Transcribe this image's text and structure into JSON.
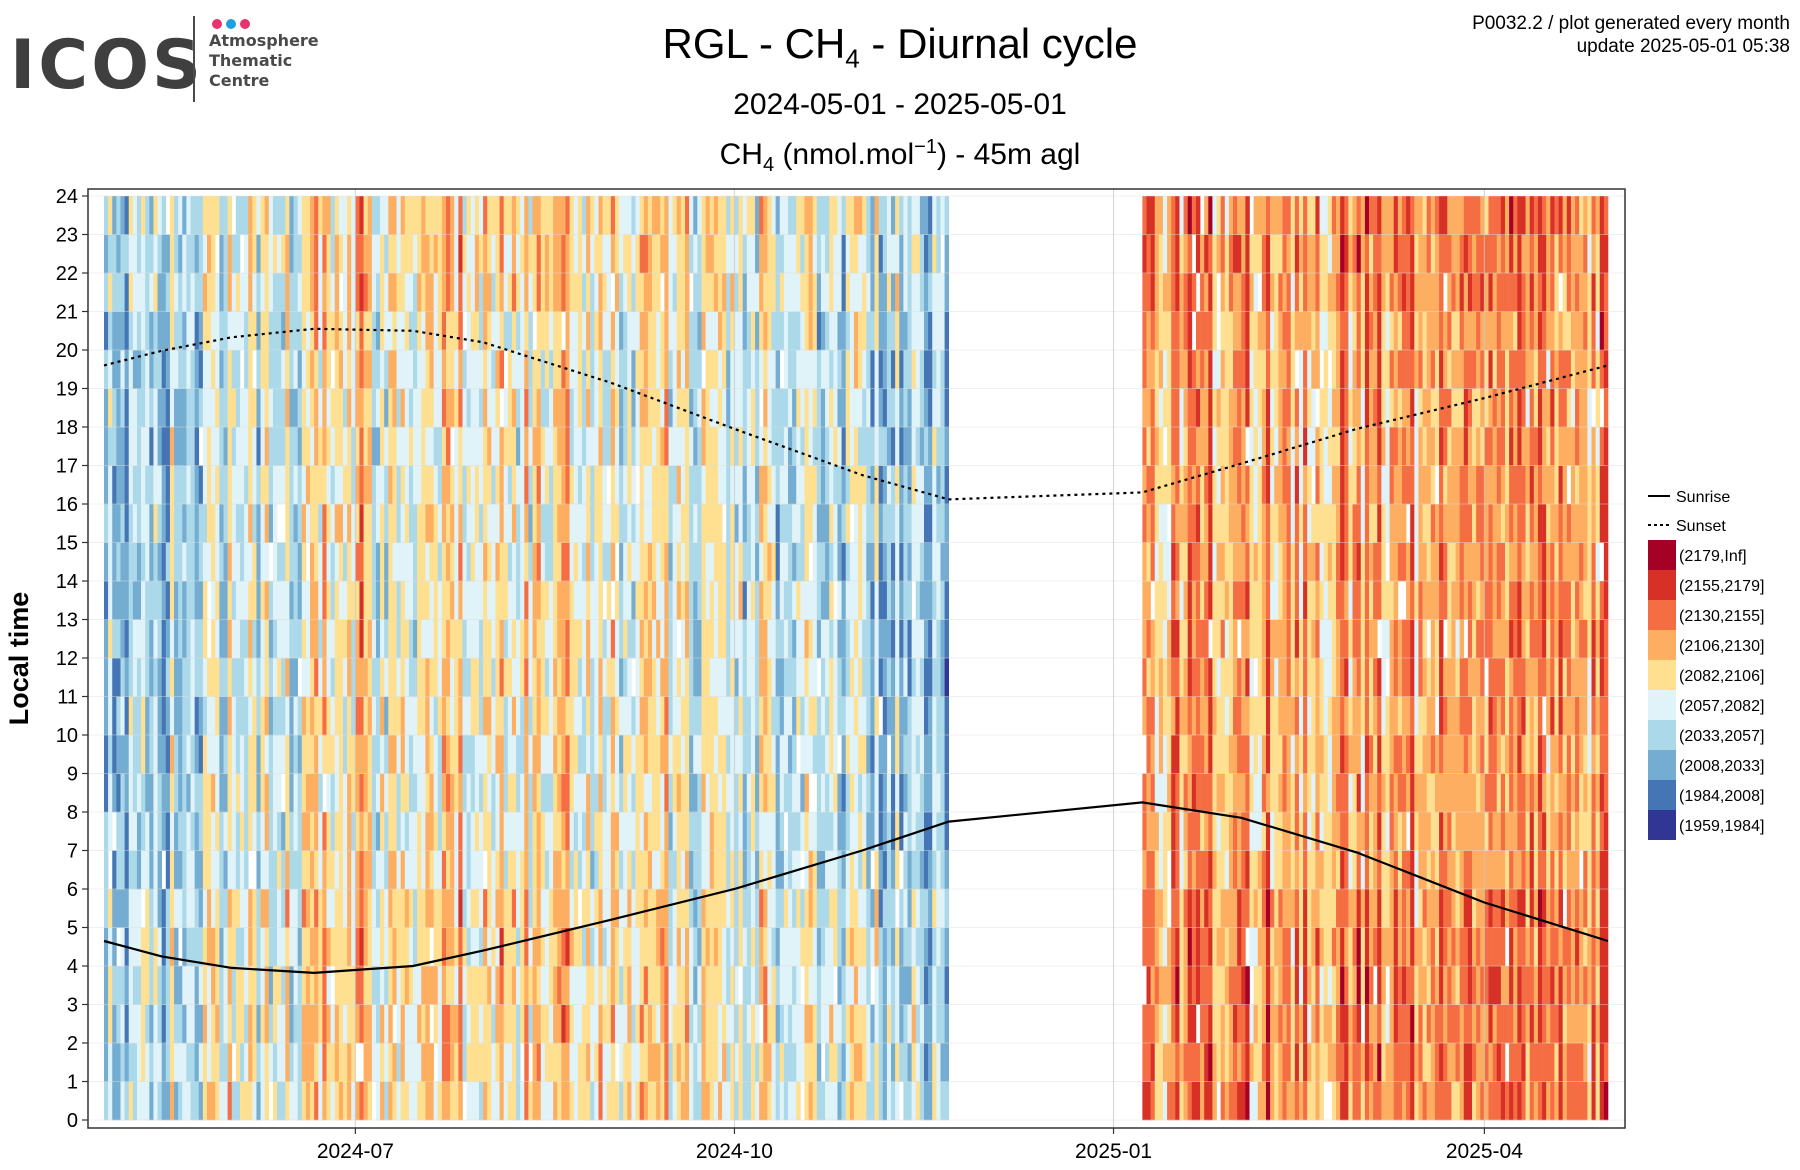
{
  "logo": {
    "word": "ICOS",
    "lines": [
      "Atmosphere",
      "Thematic",
      "Centre"
    ],
    "dot_colors": [
      "#e8336d",
      "#1ea0dc",
      "#e8336d"
    ]
  },
  "title": {
    "main_prefix": "RGL - CH",
    "main_sub": "4",
    "main_suffix": " - Diurnal cycle",
    "date_range": "2024-05-01 - 2025-05-01",
    "unit_prefix": "CH",
    "unit_sub": "4",
    "unit_mid": " (nmol.mol",
    "unit_sup": "−1",
    "unit_suffix": ") - 45m agl"
  },
  "corner": {
    "line1": "P0032.2 / plot generated every month",
    "line2": "update  2025-05-01 05:38"
  },
  "chart_data": {
    "type": "heatmap",
    "ylabel": "Local time",
    "xlabel": "",
    "x_range": [
      "2024-05-01",
      "2025-05-01"
    ],
    "ylim": [
      0,
      24
    ],
    "y_ticks": [
      0,
      1,
      2,
      3,
      4,
      5,
      6,
      7,
      8,
      9,
      10,
      11,
      12,
      13,
      14,
      15,
      16,
      17,
      18,
      19,
      20,
      21,
      22,
      23,
      24
    ],
    "x_ticks": [
      {
        "date": "2024-07-01",
        "label": "2024-07"
      },
      {
        "date": "2024-10-01",
        "label": "2024-10"
      },
      {
        "date": "2025-01-01",
        "label": "2025-01"
      },
      {
        "date": "2025-04-01",
        "label": "2025-04"
      }
    ],
    "grid": true,
    "data_gaps": [
      [
        "2024-11-22",
        "2025-01-08"
      ]
    ],
    "bins": [
      {
        "label": "(2179,Inf]",
        "color": "#a50026"
      },
      {
        "label": "(2155,2179]",
        "color": "#d73027"
      },
      {
        "label": "(2130,2155]",
        "color": "#f46d43"
      },
      {
        "label": "(2106,2130]",
        "color": "#fdae61"
      },
      {
        "label": "(2082,2106]",
        "color": "#fee090"
      },
      {
        "label": "(2057,2082]",
        "color": "#e0f3f8"
      },
      {
        "label": "(2033,2057]",
        "color": "#abd9e9"
      },
      {
        "label": "(2008,2033]",
        "color": "#74add1"
      },
      {
        "label": "(1984,2008]",
        "color": "#4575b4"
      },
      {
        "label": "(1959,1984]",
        "color": "#313695"
      }
    ],
    "sunrise": [
      {
        "date": "2024-05-01",
        "hour": 4.65
      },
      {
        "date": "2024-05-15",
        "hour": 4.25
      },
      {
        "date": "2024-06-01",
        "hour": 3.95
      },
      {
        "date": "2024-06-21",
        "hour": 3.82
      },
      {
        "date": "2024-07-15",
        "hour": 4.0
      },
      {
        "date": "2024-08-01",
        "hour": 4.4
      },
      {
        "date": "2024-09-01",
        "hour": 5.2
      },
      {
        "date": "2024-10-01",
        "hour": 6.0
      },
      {
        "date": "2024-11-01",
        "hour": 7.0
      },
      {
        "date": "2024-11-22",
        "hour": 7.75
      },
      {
        "date": "2025-01-08",
        "hour": 8.25
      },
      {
        "date": "2025-02-01",
        "hour": 7.85
      },
      {
        "date": "2025-03-01",
        "hour": 6.95
      },
      {
        "date": "2025-04-01",
        "hour": 5.65
      },
      {
        "date": "2025-05-01",
        "hour": 4.65
      }
    ],
    "sunset": [
      {
        "date": "2024-05-01",
        "hour": 19.6
      },
      {
        "date": "2024-05-15",
        "hour": 19.98
      },
      {
        "date": "2024-06-01",
        "hour": 20.33
      },
      {
        "date": "2024-06-21",
        "hour": 20.55
      },
      {
        "date": "2024-07-15",
        "hour": 20.5
      },
      {
        "date": "2024-08-01",
        "hour": 20.2
      },
      {
        "date": "2024-09-01",
        "hour": 19.15
      },
      {
        "date": "2024-10-01",
        "hour": 17.95
      },
      {
        "date": "2024-11-01",
        "hour": 16.75
      },
      {
        "date": "2024-11-22",
        "hour": 16.12
      },
      {
        "date": "2025-01-08",
        "hour": 16.3
      },
      {
        "date": "2025-02-01",
        "hour": 17.05
      },
      {
        "date": "2025-03-01",
        "hour": 17.95
      },
      {
        "date": "2025-04-01",
        "hour": 18.75
      },
      {
        "date": "2025-05-01",
        "hour": 19.6
      }
    ],
    "legend": {
      "placement": "right",
      "line_entries": [
        {
          "label": "Sunrise",
          "style": "solid"
        },
        {
          "label": "Sunset",
          "style": "dotted"
        }
      ]
    }
  }
}
